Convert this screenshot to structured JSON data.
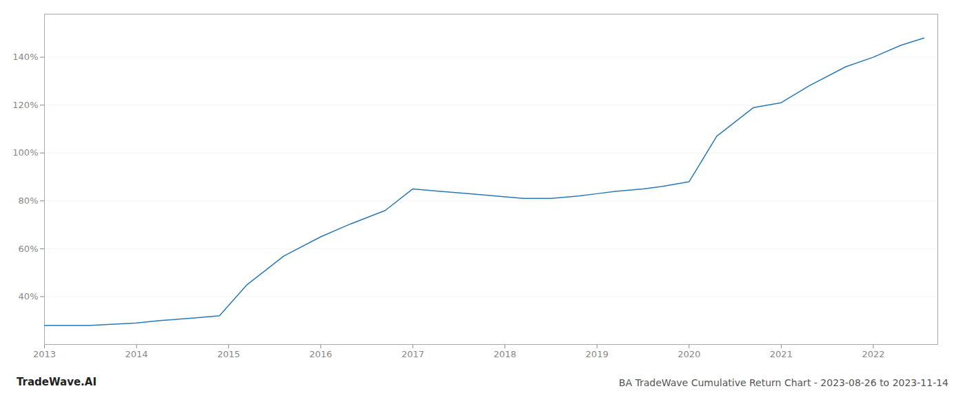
{
  "chart_data": {
    "type": "line",
    "title": "BA TradeWave Cumulative Return Chart - 2023-08-26 to 2023-11-14",
    "annotations": [
      "TradeWave.AI"
    ],
    "x": [
      2013.0,
      2013.5,
      2014.0,
      2014.25,
      2014.6,
      2014.9,
      2015.2,
      2015.6,
      2016.0,
      2016.3,
      2016.7,
      2017.0,
      2017.3,
      2017.6,
      2017.9,
      2018.2,
      2018.5,
      2018.8,
      2019.0,
      2019.2,
      2019.5,
      2019.7,
      2020.0,
      2020.3,
      2020.7,
      2021.0,
      2021.3,
      2021.7,
      2022.0,
      2022.3,
      2022.55
    ],
    "values": [
      28,
      28,
      29,
      30,
      31,
      32,
      45,
      57,
      65,
      70,
      76,
      85,
      84,
      83,
      82,
      81,
      81,
      82,
      83,
      84,
      85,
      86,
      88,
      107,
      119,
      121,
      128,
      136,
      140,
      145,
      148
    ],
    "color": "#2878b5",
    "xlim": [
      2013.0,
      2022.7
    ],
    "xticks": [
      2013,
      2014,
      2015,
      2016,
      2017,
      2018,
      2019,
      2020,
      2021,
      2022
    ],
    "ylim": [
      20,
      158
    ],
    "yticks": [
      {
        "value": 40,
        "label": "40%"
      },
      {
        "value": 60,
        "label": "60%"
      },
      {
        "value": 80,
        "label": "80%"
      },
      {
        "value": 100,
        "label": "100%"
      },
      {
        "value": 120,
        "label": "120%"
      },
      {
        "value": 140,
        "label": "140%"
      }
    ],
    "grid": "y"
  }
}
